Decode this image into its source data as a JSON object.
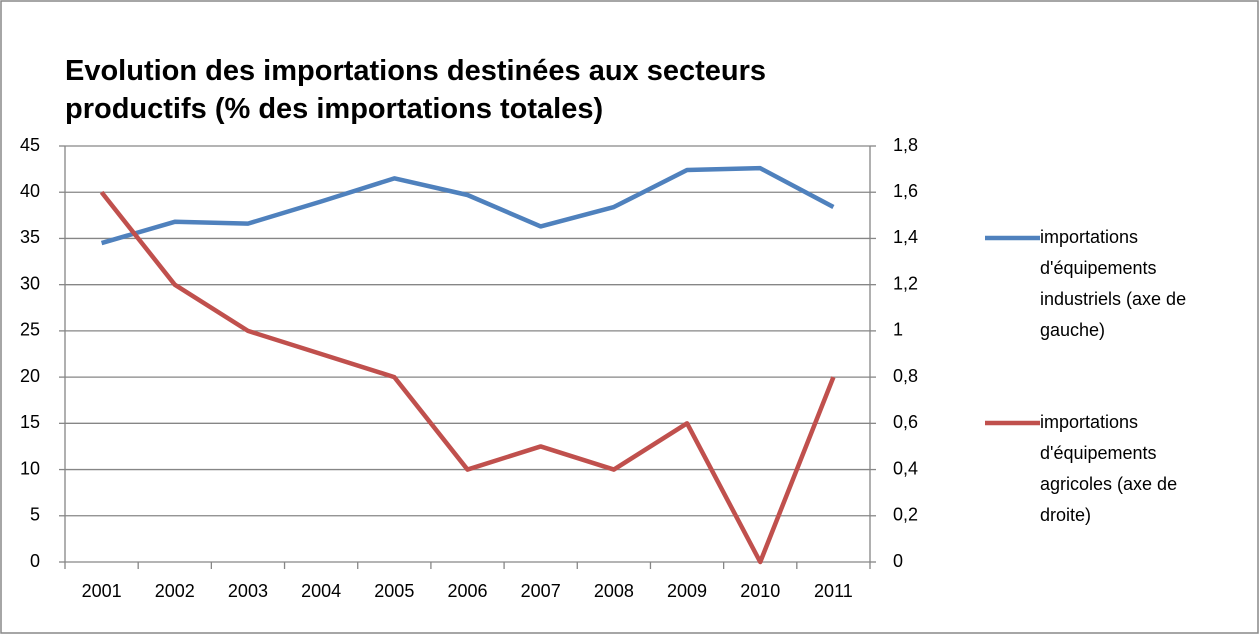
{
  "chart_data": {
    "type": "line",
    "title": "Evolution des importations destinées aux secteurs productifs (% des importations totales)",
    "categories": [
      "2001",
      "2002",
      "2003",
      "2004",
      "2005",
      "2006",
      "2007",
      "2008",
      "2009",
      "2010",
      "2011"
    ],
    "series": [
      {
        "name": "importations d'équipements industriels (axe de gauche)",
        "color": "#4f81bd",
        "values": [
          34.5,
          36.8,
          36.6,
          39,
          41.5,
          39.7,
          36.3,
          38.4,
          42.4,
          42.6,
          38.4
        ]
      },
      {
        "name": "importations d'équipements agricoles (axe de droite)",
        "color": "#c0504d",
        "axis": "y2",
        "values": [
          1.6,
          1.2,
          1,
          0.9,
          0.8,
          0.4,
          0.5,
          0.4,
          0.6,
          0,
          0.8
        ]
      }
    ],
    "ylim": [
      0,
      45
    ],
    "yticks": [
      0,
      5,
      10,
      15,
      20,
      25,
      30,
      35,
      40,
      45
    ],
    "y2lim": [
      0,
      1.8
    ],
    "y2ticks": [
      0,
      {
        "value": 0.2,
        "label": "0,2"
      },
      {
        "value": 0.4,
        "label": "0,4"
      },
      {
        "value": 0.6,
        "label": "0,6"
      },
      {
        "value": 0.8,
        "label": "0,8"
      },
      1,
      {
        "value": 1.2,
        "label": "1,2"
      },
      {
        "value": 1.4,
        "label": "1,4"
      },
      {
        "value": 1.6,
        "label": "1,6"
      },
      {
        "value": 1.8,
        "label": "1,8"
      }
    ],
    "grid": true,
    "legend": "right"
  }
}
